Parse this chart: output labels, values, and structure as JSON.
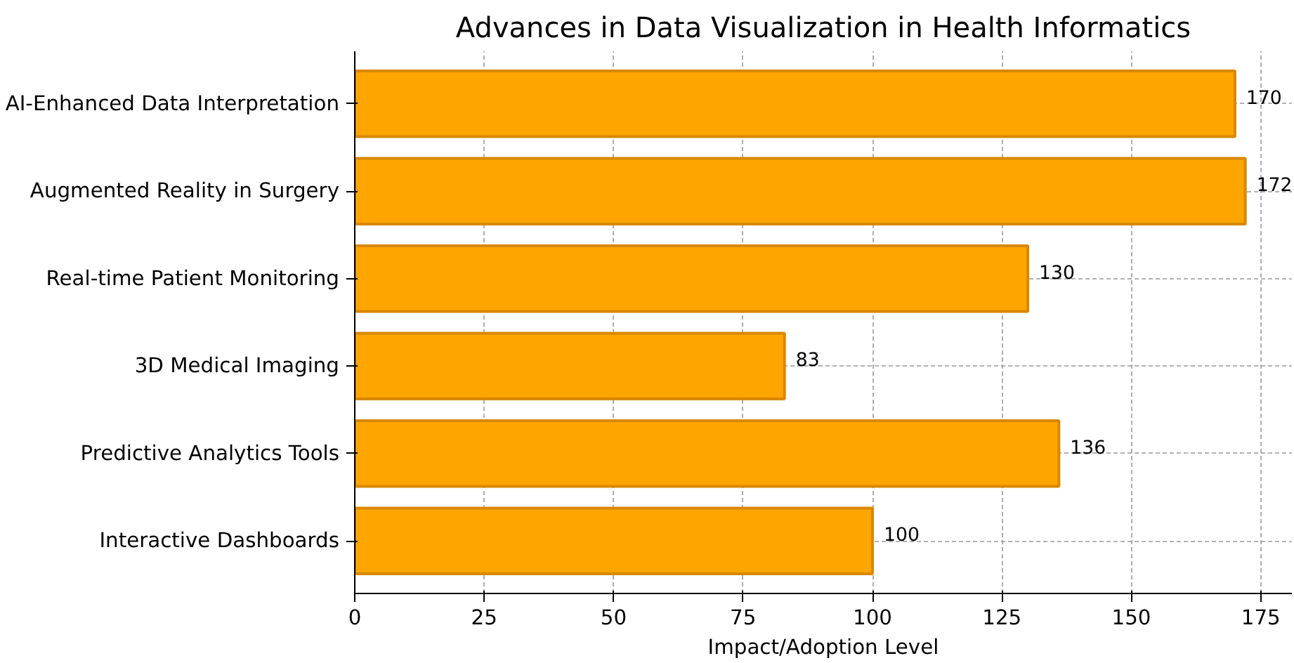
{
  "chart_data": {
    "type": "bar",
    "orientation": "horizontal",
    "title": "Advances in Data Visualization in Health Informatics",
    "xlabel": "Impact/Adoption Level",
    "categories": [
      "AI-Enhanced Data Interpretation",
      "Augmented Reality in Surgery",
      "Real-time Patient Monitoring",
      "3D Medical Imaging",
      "Predictive Analytics Tools",
      "Interactive Dashboards"
    ],
    "values": [
      170,
      172,
      130,
      83,
      136,
      100
    ],
    "color": "#ffa500",
    "xlim": [
      0,
      181
    ],
    "xticks": [
      0,
      25,
      50,
      75,
      100,
      125,
      150,
      175
    ],
    "grid": true,
    "data_labels": true
  }
}
